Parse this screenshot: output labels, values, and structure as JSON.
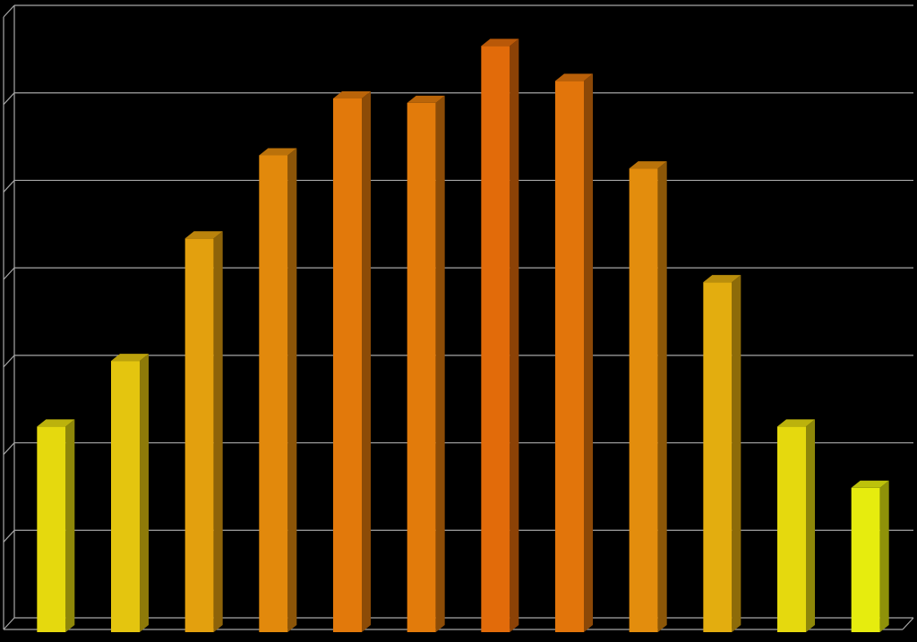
{
  "chart_data": {
    "type": "bar",
    "style": "3d-column",
    "categories": [
      "",
      "",
      "",
      "",
      "",
      "",
      "",
      "",
      "",
      "",
      "",
      ""
    ],
    "values": [
      2.35,
      3.1,
      4.5,
      5.45,
      6.1,
      6.05,
      6.7,
      6.3,
      5.3,
      4.0,
      2.35,
      1.65
    ],
    "ylim": [
      0,
      7
    ],
    "major_tick_step": 1,
    "grid": true,
    "legend": "none",
    "title": "",
    "xlabel": "",
    "ylabel": "",
    "colors": {
      "background": "#000000",
      "gridline": "#a6a6a6",
      "bar_low": "#e6ec0e",
      "bar_mid": "#e3a80f",
      "bar_high": "#e26b0a"
    }
  }
}
